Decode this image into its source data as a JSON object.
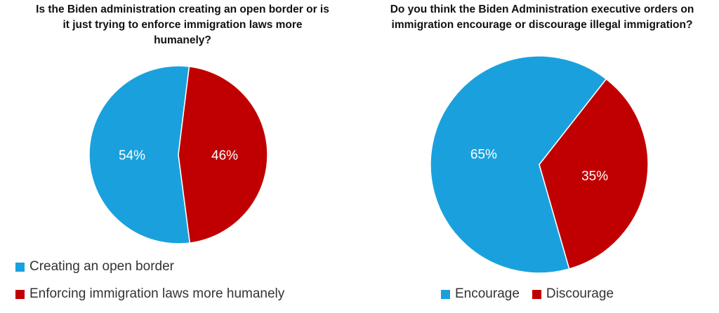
{
  "chart_data": [
    {
      "type": "pie",
      "title": "Is the Biden administration creating an open border or is it just trying to enforce immigration laws more humanely?",
      "title_lines": [
        "Is the Biden administration creating an open border or is",
        "it just trying to enforce immigration laws more",
        "humanely?"
      ],
      "categories": [
        "Creating an open border",
        "Enforcing immigration laws more humanely"
      ],
      "values": [
        54,
        46
      ],
      "labels": [
        "54%",
        "46%"
      ],
      "colors": [
        "#1AA1DD",
        "#C00000"
      ],
      "label_colors": [
        "#ffffff",
        "#ffffff"
      ],
      "legend_position": "bottom"
    },
    {
      "type": "pie",
      "title": "Do you think the Biden Administration executive orders on immigration encourage or discourage illegal immigration?",
      "title_lines": [
        "Do you think the Biden Administration executive orders on",
        "immigration encourage or discourage illegal immigration?"
      ],
      "categories": [
        "Encourage",
        "Discourage"
      ],
      "values": [
        65,
        35
      ],
      "labels": [
        "65%",
        "35%"
      ],
      "colors": [
        "#1AA1DD",
        "#C00000"
      ],
      "label_colors": [
        "#ffffff",
        "#ffffff"
      ],
      "legend_position": "bottom"
    }
  ]
}
